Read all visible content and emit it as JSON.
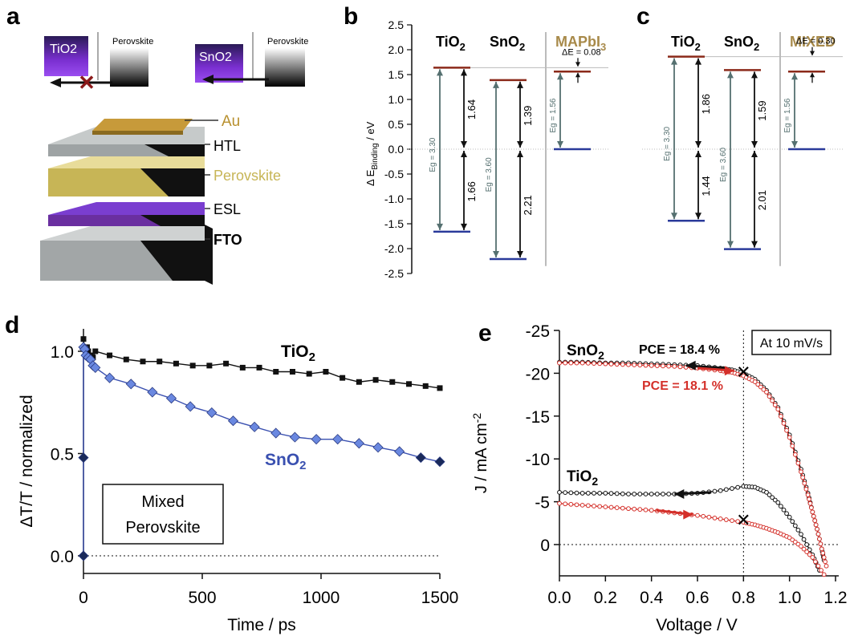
{
  "panels": {
    "a": {
      "letter": "a",
      "box1_label": "TiO2",
      "box2_label": "SnO2",
      "perov_label": "Perovskite",
      "layers": [
        "Au",
        "HTL",
        "Perovskite",
        "ESL",
        "FTO"
      ],
      "colors": {
        "au": "#b8902e",
        "perovskite": "#cfc06a",
        "esl": "#6a2fa0",
        "slab": "#9ea3a4"
      }
    },
    "b": {
      "letter": "b",
      "ylabel": "Δ E_Binding / eV",
      "ylim": [
        -2.5,
        2.5
      ],
      "yticks": [
        "2.5",
        "2.0",
        "1.5",
        "1.0",
        "0.5",
        "0.0",
        "-0.5",
        "-1.0",
        "-1.5",
        "-2.0",
        "-2.5"
      ],
      "headers": [
        "TiO2",
        "SnO2",
        "MAPbI3"
      ],
      "deltaE": "ΔE = 0.08",
      "eg": [
        "Eg = 3.30",
        "Eg = 3.60",
        "Eg = 1.56"
      ],
      "arrows": [
        "1.64",
        "1.66",
        "1.39",
        "2.21"
      ]
    },
    "c": {
      "letter": "c",
      "headers": [
        "TiO2",
        "SnO2",
        "MIXED"
      ],
      "deltaE": "ΔE = 0.30",
      "eg": [
        "Eg = 3.30",
        "Eg = 3.60",
        "Eg = 1.56"
      ],
      "arrows": [
        "1.86",
        "1.44",
        "1.59",
        "2.01"
      ]
    },
    "d": {
      "letter": "d",
      "box_text": [
        "Mixed",
        "Perovskite"
      ]
    },
    "e": {
      "letter": "e",
      "box_text": "At 10 mV/s",
      "pce1": "PCE = 18.4 %",
      "pce2": "PCE = 18.1 %",
      "label_sno2": "SnO2",
      "label_tio2": "TiO2"
    }
  },
  "chart_data": [
    {
      "panel": "b",
      "type": "bar",
      "ylabel": "Δ E_Binding / eV",
      "ylim": [
        -2.5,
        2.5
      ],
      "series": [
        {
          "name": "TiO2",
          "cb": 1.64,
          "vb": -1.66,
          "eg": 3.3
        },
        {
          "name": "SnO2",
          "cb": 1.39,
          "vb": -2.21,
          "eg": 3.6
        },
        {
          "name": "MAPbI3",
          "cb": 1.56,
          "vb": 0.0,
          "eg": 1.56,
          "deltaE": 0.08
        }
      ]
    },
    {
      "panel": "c",
      "type": "bar",
      "ylim": [
        -2.5,
        2.5
      ],
      "series": [
        {
          "name": "TiO2",
          "cb": 1.86,
          "vb": -1.44,
          "eg": 3.3
        },
        {
          "name": "SnO2",
          "cb": 1.59,
          "vb": -2.01,
          "eg": 3.6
        },
        {
          "name": "MIXED",
          "cb": 1.56,
          "vb": 0.0,
          "eg": 1.56,
          "deltaE": 0.3
        }
      ]
    },
    {
      "panel": "d",
      "type": "line",
      "xlabel": "Time / ps",
      "ylabel": "ΔT/T / normalized",
      "xlim": [
        0,
        1500
      ],
      "ylim": [
        -0.05,
        1.1
      ],
      "xticks": [
        0,
        500,
        1000,
        1500
      ],
      "yticks": [
        0.0,
        0.5,
        1.0
      ],
      "series": [
        {
          "name": "TiO2",
          "color": "#111111",
          "x": [
            0,
            5,
            10,
            15,
            20,
            30,
            40,
            50,
            110,
            180,
            250,
            320,
            390,
            460,
            530,
            600,
            670,
            740,
            810,
            880,
            950,
            1020,
            1090,
            1160,
            1230,
            1300,
            1370,
            1440,
            1500
          ],
          "y": [
            1.06,
            1.01,
            0.99,
            1.02,
            1.0,
            0.98,
            0.97,
            1.0,
            0.98,
            0.96,
            0.95,
            0.95,
            0.94,
            0.93,
            0.93,
            0.94,
            0.92,
            0.92,
            0.9,
            0.9,
            0.89,
            0.9,
            0.87,
            0.85,
            0.86,
            0.85,
            0.84,
            0.83,
            0.82
          ]
        },
        {
          "name": "SnO2",
          "color": "#3a50b0",
          "x": [
            0,
            0,
            0,
            5,
            10,
            20,
            30,
            40,
            50,
            110,
            200,
            290,
            370,
            450,
            540,
            630,
            720,
            810,
            890,
            980,
            1070,
            1160,
            1240,
            1330,
            1420,
            1500
          ],
          "y": [
            0.0,
            0.48,
            1.02,
            1.01,
            0.98,
            0.97,
            0.96,
            0.93,
            0.92,
            0.87,
            0.84,
            0.8,
            0.77,
            0.73,
            0.7,
            0.66,
            0.63,
            0.6,
            0.58,
            0.57,
            0.57,
            0.55,
            0.53,
            0.51,
            0.48,
            0.46
          ]
        }
      ]
    },
    {
      "panel": "e",
      "type": "line",
      "xlabel": "Voltage / V",
      "ylabel": "J / mA cm-2",
      "xlim": [
        0.0,
        1.2
      ],
      "ylim": [
        3.8,
        -25
      ],
      "xticks": [
        0.0,
        0.2,
        0.4,
        0.6,
        0.8,
        1.0,
        1.2
      ],
      "yticks": [
        -25,
        -20,
        -15,
        -10,
        -5,
        0
      ],
      "series": [
        {
          "name": "SnO2 reverse",
          "color": "#111111",
          "x": [
            0.0,
            0.1,
            0.2,
            0.3,
            0.4,
            0.5,
            0.6,
            0.7,
            0.75,
            0.8,
            0.85,
            0.9,
            0.95,
            1.0,
            1.05,
            1.08,
            1.1,
            1.12,
            1.14,
            1.15
          ],
          "y": [
            -21.3,
            -21.3,
            -21.2,
            -21.2,
            -21.1,
            -21.0,
            -20.9,
            -20.6,
            -20.4,
            -20.0,
            -19.3,
            -18.0,
            -16.0,
            -12.8,
            -8.8,
            -6.0,
            -3.8,
            -1.8,
            0.5,
            1.8
          ]
        },
        {
          "name": "SnO2 forward",
          "color": "#d4302a",
          "x": [
            0.0,
            0.1,
            0.2,
            0.3,
            0.4,
            0.5,
            0.6,
            0.7,
            0.75,
            0.8,
            0.85,
            0.9,
            0.95,
            1.0,
            1.05,
            1.08,
            1.1,
            1.12,
            1.14,
            1.16
          ],
          "y": [
            -21.2,
            -21.2,
            -21.1,
            -21.0,
            -20.9,
            -20.8,
            -20.6,
            -20.3,
            -20.1,
            -19.7,
            -19.0,
            -17.8,
            -15.8,
            -12.5,
            -8.5,
            -5.8,
            -3.8,
            -1.8,
            0.5,
            2.5
          ]
        },
        {
          "name": "TiO2 reverse",
          "color": "#111111",
          "x": [
            0.0,
            0.1,
            0.2,
            0.3,
            0.4,
            0.5,
            0.6,
            0.7,
            0.8,
            0.85,
            0.9,
            0.95,
            1.0,
            1.05,
            1.1,
            1.13
          ],
          "y": [
            -6.1,
            -6.0,
            -6.0,
            -5.9,
            -5.9,
            -5.9,
            -6.0,
            -6.3,
            -6.8,
            -6.7,
            -6.1,
            -4.9,
            -3.2,
            -1.2,
            1.2,
            3.0
          ]
        },
        {
          "name": "TiO2 forward",
          "color": "#d4302a",
          "x": [
            0.0,
            0.1,
            0.2,
            0.3,
            0.4,
            0.5,
            0.6,
            0.7,
            0.8,
            0.85,
            0.9,
            0.95,
            1.0,
            1.05,
            1.1,
            1.15
          ],
          "y": [
            -4.8,
            -4.6,
            -4.4,
            -4.2,
            -4.0,
            -3.7,
            -3.4,
            -3.0,
            -2.6,
            -2.3,
            -1.9,
            -1.4,
            -0.8,
            0.2,
            1.5,
            3.5
          ]
        }
      ],
      "mpp_markers": [
        {
          "x": 0.8,
          "y": -20.2
        },
        {
          "x": 0.8,
          "y": -2.9
        }
      ],
      "vline_x": 0.8
    }
  ]
}
